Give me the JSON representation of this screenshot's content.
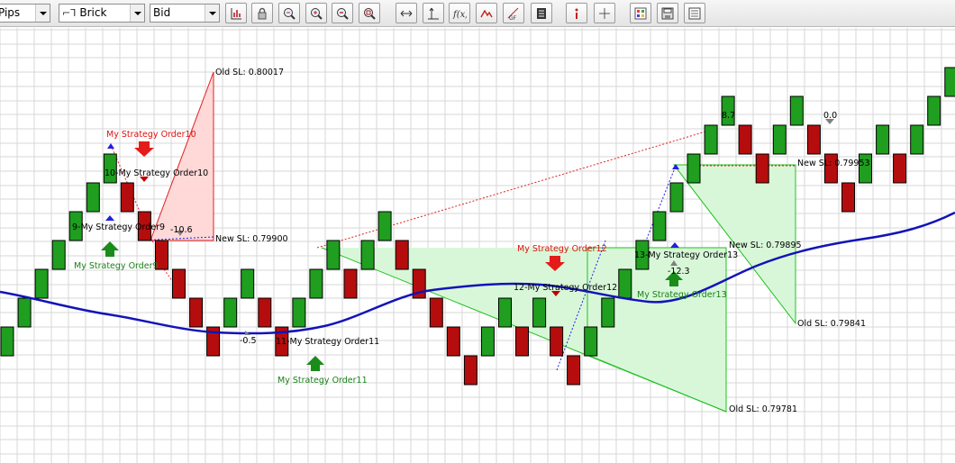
{
  "toolbar": {
    "units_value": "Pips",
    "chart_type_value": "Brick",
    "price_value": "Bid",
    "buttons": [
      {
        "name": "chart-properties-icon"
      },
      {
        "name": "lock-icon"
      },
      {
        "name": "zoom-fit-icon"
      },
      {
        "name": "zoom-in-icon"
      },
      {
        "name": "zoom-out-icon"
      },
      {
        "name": "zoom-reset-icon"
      },
      {
        "name": "horizontal-line-icon"
      },
      {
        "name": "vertical-line-icon"
      },
      {
        "name": "indicator-fx-icon"
      },
      {
        "name": "pattern-icon"
      },
      {
        "name": "fibonacci-icon"
      },
      {
        "name": "text-note-icon"
      },
      {
        "name": "info-icon"
      },
      {
        "name": "crosshair-icon"
      },
      {
        "name": "color-scheme-icon"
      },
      {
        "name": "save-template-icon"
      },
      {
        "name": "layout-icon"
      }
    ]
  },
  "colors": {
    "up_brick": "#1f9e1f",
    "down_brick": "#b50d0d",
    "moving_average": "#1313b8",
    "grid": "#d7d7d7",
    "profit_zone": "#d8f7d8",
    "loss_zone": "#ffd8d8",
    "buy_label": "#1a801a",
    "sell_label": "#e01010"
  },
  "chart_data": {
    "type": "renko",
    "bricks": [
      {
        "dir": "up",
        "lo": 0,
        "hi": 1
      },
      {
        "dir": "up",
        "lo": 1,
        "hi": 2
      },
      {
        "dir": "up",
        "lo": 2,
        "hi": 3
      },
      {
        "dir": "up",
        "lo": 3,
        "hi": 4
      },
      {
        "dir": "up",
        "lo": 4,
        "hi": 5
      },
      {
        "dir": "up",
        "lo": 5,
        "hi": 6
      },
      {
        "dir": "up",
        "lo": 6,
        "hi": 7
      },
      {
        "dir": "down",
        "lo": 5,
        "hi": 6
      },
      {
        "dir": "down",
        "lo": 4,
        "hi": 5
      },
      {
        "dir": "down",
        "lo": 3,
        "hi": 4
      },
      {
        "dir": "down",
        "lo": 2,
        "hi": 3
      },
      {
        "dir": "down",
        "lo": 1,
        "hi": 2
      },
      {
        "dir": "down",
        "lo": 0,
        "hi": 1
      },
      {
        "dir": "up",
        "lo": 1,
        "hi": 2
      },
      {
        "dir": "up",
        "lo": 2,
        "hi": 3
      },
      {
        "dir": "down",
        "lo": 1,
        "hi": 2
      },
      {
        "dir": "down",
        "lo": 0,
        "hi": 1
      },
      {
        "dir": "up",
        "lo": 1,
        "hi": 2
      },
      {
        "dir": "up",
        "lo": 2,
        "hi": 3
      },
      {
        "dir": "up",
        "lo": 3,
        "hi": 4
      },
      {
        "dir": "down",
        "lo": 2,
        "hi": 3
      },
      {
        "dir": "up",
        "lo": 3,
        "hi": 4
      },
      {
        "dir": "up",
        "lo": 4,
        "hi": 5
      },
      {
        "dir": "down",
        "lo": 3,
        "hi": 4
      },
      {
        "dir": "down",
        "lo": 2,
        "hi": 3
      },
      {
        "dir": "down",
        "lo": 1,
        "hi": 2
      },
      {
        "dir": "down",
        "lo": 0,
        "hi": 1
      },
      {
        "dir": "down",
        "lo": -1,
        "hi": 0
      },
      {
        "dir": "up",
        "lo": 0,
        "hi": 1
      },
      {
        "dir": "up",
        "lo": 1,
        "hi": 2
      },
      {
        "dir": "down",
        "lo": 0,
        "hi": 1
      },
      {
        "dir": "up",
        "lo": 1,
        "hi": 2
      },
      {
        "dir": "down",
        "lo": 0,
        "hi": 1
      },
      {
        "dir": "down",
        "lo": -1,
        "hi": 0
      },
      {
        "dir": "up",
        "lo": 0,
        "hi": 1
      },
      {
        "dir": "up",
        "lo": 1,
        "hi": 2
      },
      {
        "dir": "up",
        "lo": 2,
        "hi": 3
      },
      {
        "dir": "up",
        "lo": 3,
        "hi": 4
      },
      {
        "dir": "up",
        "lo": 4,
        "hi": 5
      },
      {
        "dir": "up",
        "lo": 5,
        "hi": 6
      },
      {
        "dir": "up",
        "lo": 6,
        "hi": 7
      },
      {
        "dir": "up",
        "lo": 7,
        "hi": 8
      },
      {
        "dir": "up",
        "lo": 8,
        "hi": 9
      },
      {
        "dir": "down",
        "lo": 7,
        "hi": 8
      },
      {
        "dir": "down",
        "lo": 6,
        "hi": 7
      },
      {
        "dir": "up",
        "lo": 7,
        "hi": 8
      },
      {
        "dir": "up",
        "lo": 8,
        "hi": 9
      },
      {
        "dir": "down",
        "lo": 7,
        "hi": 8
      },
      {
        "dir": "down",
        "lo": 6,
        "hi": 7
      },
      {
        "dir": "down",
        "lo": 5,
        "hi": 6
      },
      {
        "dir": "up",
        "lo": 6,
        "hi": 7
      },
      {
        "dir": "up",
        "lo": 7,
        "hi": 8
      },
      {
        "dir": "down",
        "lo": 6,
        "hi": 7
      },
      {
        "dir": "up",
        "lo": 7,
        "hi": 8
      },
      {
        "dir": "up",
        "lo": 8,
        "hi": 9
      },
      {
        "dir": "up",
        "lo": 9,
        "hi": 10
      }
    ],
    "labels": {
      "old_sl_1": "Old SL: 0.80017",
      "new_sl_1": "New SL: 0.79900",
      "order10_sell": "My Strategy Order10",
      "order10_tag": "10-My Strategy Order10",
      "order9_tag": "9-My Strategy Order9",
      "order9_buy": "My Strategy Order9",
      "pl_1": "-10.6",
      "pl_2": "-0.5",
      "order11_tag": "11-My Strategy Order11",
      "order11_buy": "My Strategy Order11",
      "order12_sell": "My Strategy Order12",
      "order12_tag": "12-My Strategy Order12",
      "order13_tag": "13-My Strategy Order13",
      "pl_3": "-12.3",
      "order13_buy": "My Strategy Order13",
      "new_sl_2": "New SL: 0.79895",
      "old_sl_2": "Old SL: 0.79841",
      "old_sl_3": "Old SL: 0.79781",
      "new_sl_3": "New SL: 0.79953",
      "pl_4": "8.7",
      "pl_5": "0.0"
    }
  }
}
